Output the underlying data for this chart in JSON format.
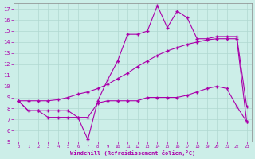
{
  "xlabel": "Windchill (Refroidissement éolien,°C)",
  "background_color": "#cceee8",
  "line_color": "#aa00aa",
  "xlim": [
    -0.5,
    23.5
  ],
  "ylim": [
    5,
    17.5
  ],
  "xticks": [
    0,
    1,
    2,
    3,
    4,
    5,
    6,
    7,
    8,
    9,
    10,
    11,
    12,
    13,
    14,
    15,
    16,
    17,
    18,
    19,
    20,
    21,
    22,
    23
  ],
  "yticks": [
    5,
    6,
    7,
    8,
    9,
    10,
    11,
    12,
    13,
    14,
    15,
    16,
    17
  ],
  "line1_x": [
    0,
    1,
    2,
    3,
    4,
    5,
    6,
    7,
    8,
    9,
    10,
    11,
    12,
    13,
    14,
    15,
    16,
    17,
    18,
    19,
    20,
    21,
    22,
    23
  ],
  "line1_y": [
    8.7,
    7.8,
    7.8,
    7.2,
    7.2,
    7.2,
    7.2,
    5.2,
    8.7,
    10.6,
    12.3,
    14.7,
    14.7,
    15.0,
    17.3,
    15.3,
    16.8,
    16.2,
    14.3,
    14.3,
    14.5,
    14.5,
    14.5,
    8.2
  ],
  "line2_x": [
    0,
    1,
    2,
    3,
    4,
    5,
    6,
    7,
    8,
    9,
    10,
    11,
    12,
    13,
    14,
    15,
    16,
    17,
    18,
    19,
    20,
    21,
    22,
    23
  ],
  "line2_y": [
    8.7,
    7.8,
    7.8,
    7.8,
    7.8,
    7.8,
    7.2,
    7.2,
    8.5,
    8.7,
    8.7,
    8.7,
    8.7,
    9.0,
    9.0,
    9.0,
    9.0,
    9.2,
    9.5,
    9.8,
    10.0,
    9.8,
    8.2,
    6.8
  ],
  "line3_x": [
    0,
    1,
    2,
    3,
    4,
    5,
    6,
    7,
    8,
    9,
    10,
    11,
    12,
    13,
    14,
    15,
    16,
    17,
    18,
    19,
    20,
    21,
    22,
    23
  ],
  "line3_y": [
    8.7,
    8.7,
    8.7,
    8.7,
    8.8,
    9.0,
    9.3,
    9.5,
    9.8,
    10.2,
    10.7,
    11.2,
    11.8,
    12.3,
    12.8,
    13.2,
    13.5,
    13.8,
    14.0,
    14.2,
    14.3,
    14.3,
    14.3,
    6.8
  ],
  "marker": "+",
  "markersize": 3,
  "linewidth": 0.8
}
